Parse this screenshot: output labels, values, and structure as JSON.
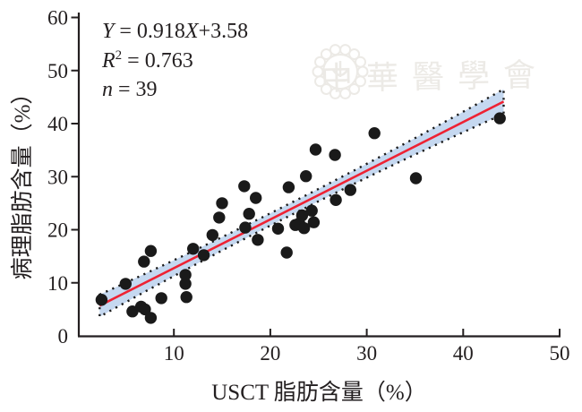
{
  "chart_data": {
    "type": "scatter",
    "xlabel": "USCT 脂肪含量（%）",
    "ylabel": "病理脂肪含量（%）",
    "xlim": [
      0,
      50
    ],
    "ylim": [
      0,
      60
    ],
    "x_ticks": [
      10,
      20,
      30,
      40,
      50
    ],
    "y_ticks": [
      0,
      10,
      20,
      30,
      40,
      50,
      60
    ],
    "grid": false,
    "legend": "none",
    "point_color": "#1a1a1a",
    "axis_color": "#231f20",
    "points": [
      [
        2.5,
        6.8
      ],
      [
        5.0,
        9.8
      ],
      [
        5.7,
        4.6
      ],
      [
        6.6,
        5.5
      ],
      [
        7.0,
        5.0
      ],
      [
        7.6,
        3.4
      ],
      [
        8.7,
        7.1
      ],
      [
        11.3,
        7.3
      ],
      [
        11.2,
        9.8
      ],
      [
        11.2,
        11.5
      ],
      [
        6.9,
        14.0
      ],
      [
        7.6,
        16.0
      ],
      [
        12.0,
        16.4
      ],
      [
        13.1,
        15.2
      ],
      [
        14.0,
        19.0
      ],
      [
        14.7,
        22.3
      ],
      [
        15.0,
        25.0
      ],
      [
        17.3,
        28.2
      ],
      [
        17.8,
        23.0
      ],
      [
        17.4,
        20.4
      ],
      [
        18.7,
        18.1
      ],
      [
        18.5,
        26.0
      ],
      [
        20.8,
        20.2
      ],
      [
        21.7,
        15.7
      ],
      [
        21.9,
        28.0
      ],
      [
        22.6,
        20.9
      ],
      [
        23.0,
        21.2
      ],
      [
        23.5,
        20.3
      ],
      [
        23.3,
        22.7
      ],
      [
        23.7,
        30.1
      ],
      [
        24.3,
        23.6
      ],
      [
        24.5,
        21.4
      ],
      [
        24.7,
        35.1
      ],
      [
        26.7,
        34.1
      ],
      [
        26.8,
        25.6
      ],
      [
        28.3,
        27.5
      ],
      [
        30.8,
        38.2
      ],
      [
        35.1,
        29.7
      ],
      [
        43.8,
        41.0
      ]
    ],
    "regression": {
      "slope": 0.918,
      "intercept": 3.58,
      "x_start": 2.3,
      "x_end": 44.2,
      "line_color": "#ee2233"
    },
    "confidence_band": {
      "fill": "#c5d8f0",
      "edge_color": "#1a1a1a",
      "edge_style": "dotted",
      "center_x": 22,
      "half_width_base": 1.15,
      "half_width_quad": 0.0024
    },
    "stats": {
      "equation": "Y = 0.918X+3.58",
      "r_squared": "R² = 0.763",
      "n": "n = 39"
    },
    "annotation_lines": [
      [
        {
          "t": "Y",
          "i": 1
        },
        {
          "t": " = 0.918"
        },
        {
          "t": "X",
          "i": 1
        },
        {
          "t": "+3.58"
        }
      ],
      [
        {
          "t": "R",
          "i": 1
        },
        {
          "t": "2",
          "sup": 1
        },
        {
          "t": " = 0.763"
        }
      ],
      [
        {
          "t": "n",
          "i": 1
        },
        {
          "t": " = 39"
        }
      ]
    ]
  },
  "watermark": {
    "text": "中華醫學會",
    "emblem": "seal-flower-icon",
    "color": "#dedad2"
  }
}
